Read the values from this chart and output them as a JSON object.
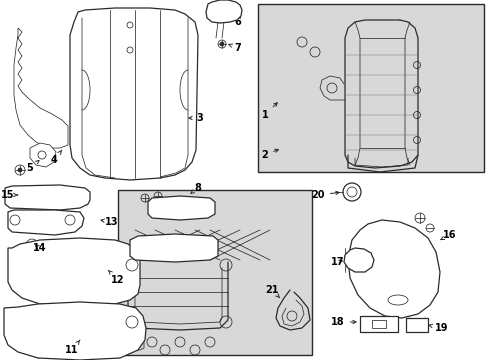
{
  "bg_color": "#ffffff",
  "box_bg": "#d8d8d8",
  "line_color": "#2a2a2a",
  "label_color": "#000000",
  "figsize": [
    4.89,
    3.6
  ],
  "dpi": 100
}
